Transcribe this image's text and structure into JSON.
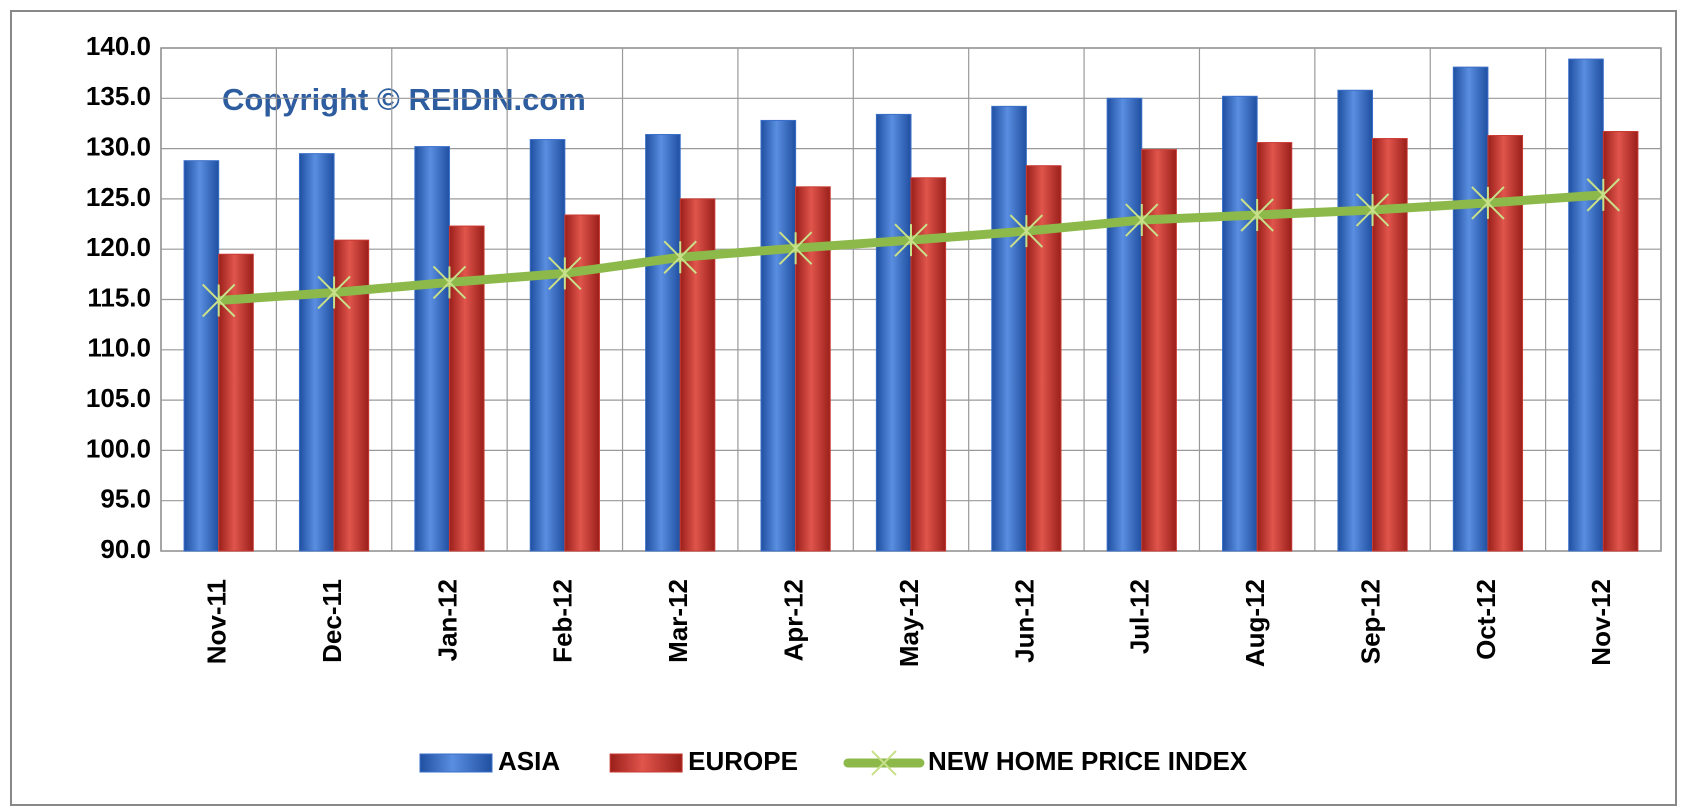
{
  "chart_data": {
    "type": "bar",
    "annotation": "Copyright © REIDIN.com",
    "categories": [
      "Nov-11",
      "Dec-11",
      "Jan-12",
      "Feb-12",
      "Mar-12",
      "Apr-12",
      "May-12",
      "Jun-12",
      "Jul-12",
      "Aug-12",
      "Sep-12",
      "Oct-12",
      "Nov-12"
    ],
    "series": [
      {
        "name": "ASIA",
        "type": "bar",
        "color": "#3a6fc9",
        "values": [
          128.8,
          129.5,
          130.2,
          130.9,
          131.4,
          132.8,
          133.4,
          134.2,
          135.0,
          135.2,
          135.8,
          138.1,
          138.9
        ]
      },
      {
        "name": "EUROPE",
        "type": "bar",
        "color": "#c93a32",
        "values": [
          119.5,
          120.9,
          122.3,
          123.4,
          125.0,
          126.2,
          127.1,
          128.3,
          129.9,
          130.6,
          131.0,
          131.3,
          131.7
        ]
      },
      {
        "name": "NEW HOME PRICE INDEX",
        "type": "line",
        "color": "#8db94a",
        "values": [
          114.9,
          115.7,
          116.7,
          117.6,
          119.2,
          120.1,
          120.9,
          121.8,
          122.9,
          123.4,
          123.9,
          124.6,
          125.4
        ]
      }
    ],
    "ylim": [
      90,
      140
    ],
    "yticks": [
      {
        "value": 90,
        "label": "90.0"
      },
      {
        "value": 95,
        "label": "95.0"
      },
      {
        "value": 100,
        "label": "100.0"
      },
      {
        "value": 105,
        "label": "105.0"
      },
      {
        "value": 110,
        "label": "110.0"
      },
      {
        "value": 115,
        "label": "115.0"
      },
      {
        "value": 120,
        "label": "120.0"
      },
      {
        "value": 125,
        "label": "125.0"
      },
      {
        "value": 130,
        "label": "130.0"
      },
      {
        "value": 135,
        "label": "135.0"
      },
      {
        "value": 140,
        "label": "140.0"
      }
    ],
    "grid": true,
    "legend": "bottom"
  }
}
